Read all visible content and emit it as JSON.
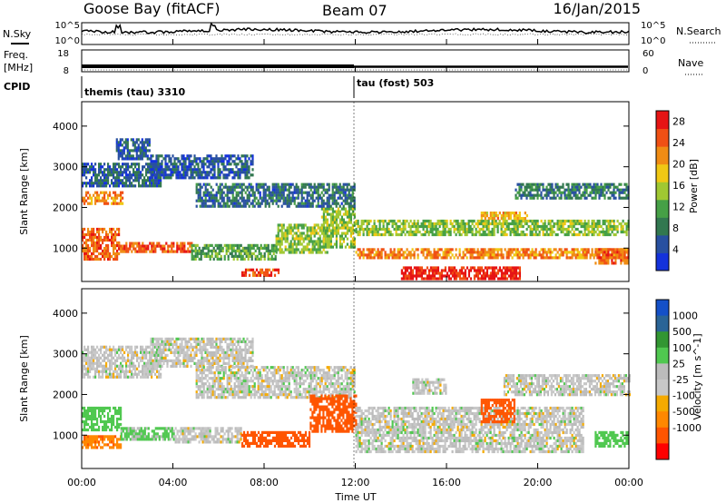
{
  "header": {
    "station": "Goose Bay (fitACF)",
    "beam": "Beam 07",
    "date": "16/Jan/2015"
  },
  "noise_panel": {
    "left_label": "N.Sky",
    "right_label": "N.Search",
    "tick_top": "10^5",
    "tick_bottom": "10^0"
  },
  "freq_panel": {
    "left_label_line1": "Freq.",
    "left_label_line2": "[MHz]",
    "right_label": "Nave",
    "left_ticks": [
      "18",
      "8"
    ],
    "right_ticks": [
      "60",
      "0"
    ]
  },
  "cpid": {
    "label": "CPID",
    "segments": [
      {
        "name": "themis (tau) 3310",
        "start_hour": 0,
        "end_hour": 12
      },
      {
        "name": "tau (fost) 503",
        "start_hour": 12,
        "end_hour": 24
      }
    ]
  },
  "colors": {
    "power": [
      "#1432dc",
      "#2850a0",
      "#327850",
      "#46a046",
      "#a0c832",
      "#f0c814",
      "#f08c14",
      "#f05014",
      "#e61414"
    ],
    "velocity": [
      "#ff0000",
      "#ff5500",
      "#ff8800",
      "#f5aa00",
      "#c8c8c8",
      "#bcbcbc",
      "#50c850",
      "#329632",
      "#2a6496",
      "#1450c8"
    ]
  },
  "chart_data": [
    {
      "type": "heatmap",
      "title": "",
      "xlabel": "Time UT",
      "ylabel": "Slant Range [km]",
      "xlim": [
        0,
        24
      ],
      "ylim": [
        180,
        4600
      ],
      "x_ticks": [
        "00:00",
        "04:00",
        "08:00",
        "12:00",
        "16:00",
        "20:00",
        "00:00"
      ],
      "y_ticks": [
        "1000",
        "2000",
        "3000",
        "4000"
      ],
      "colorbar": {
        "label": "Power [dB]",
        "range": [
          0,
          30
        ],
        "ticks": [
          "4",
          "8",
          "12",
          "16",
          "20",
          "24",
          "28"
        ]
      },
      "regions": [
        {
          "t": [
            0,
            1.6
          ],
          "r": [
            700,
            1500
          ],
          "value": 24
        },
        {
          "t": [
            1.6,
            4.8
          ],
          "r": [
            900,
            1150
          ],
          "value": 24
        },
        {
          "t": [
            4.8,
            8.5
          ],
          "r": [
            700,
            1100
          ],
          "value": 12
        },
        {
          "t": [
            7.0,
            8.6
          ],
          "r": [
            350,
            500
          ],
          "value": 26
        },
        {
          "t": [
            8.5,
            10.8
          ],
          "r": [
            900,
            1600
          ],
          "value": 14
        },
        {
          "t": [
            10.5,
            12
          ],
          "r": [
            1000,
            2000
          ],
          "value": 14
        },
        {
          "t": [
            12,
            24
          ],
          "r": [
            750,
            1000
          ],
          "value": 22
        },
        {
          "t": [
            12,
            24
          ],
          "r": [
            1300,
            1700
          ],
          "value": 14
        },
        {
          "t": [
            14.0,
            19.2
          ],
          "r": [
            280,
            550
          ],
          "value": 28
        },
        {
          "t": [
            22.5,
            24
          ],
          "r": [
            600,
            1000
          ],
          "value": 24
        },
        {
          "t": [
            0,
            1.8
          ],
          "r": [
            2100,
            2400
          ],
          "value": 22
        },
        {
          "t": [
            0,
            3.5
          ],
          "r": [
            2500,
            3100
          ],
          "value": 6
        },
        {
          "t": [
            1.5,
            3.0
          ],
          "r": [
            3200,
            3700
          ],
          "value": 6
        },
        {
          "t": [
            3.0,
            7.5
          ],
          "r": [
            2700,
            3300
          ],
          "value": 5
        },
        {
          "t": [
            5.0,
            12
          ],
          "r": [
            2000,
            2600
          ],
          "value": 7
        },
        {
          "t": [
            17.5,
            19.5
          ],
          "r": [
            1700,
            1900
          ],
          "value": 20
        },
        {
          "t": [
            19.0,
            24
          ],
          "r": [
            2200,
            2600
          ],
          "value": 8
        }
      ]
    },
    {
      "type": "heatmap",
      "title": "",
      "xlabel": "Time UT",
      "ylabel": "Slant Range [km]",
      "xlim": [
        0,
        24
      ],
      "ylim": [
        180,
        4600
      ],
      "x_ticks": [
        "00:00",
        "04:00",
        "08:00",
        "12:00",
        "16:00",
        "20:00",
        "00:00"
      ],
      "y_ticks": [
        "1000",
        "2000",
        "3000",
        "4000"
      ],
      "colorbar": {
        "label": "Velocity [m s^-1]",
        "ticks": [
          "1000",
          "500",
          "100",
          "25",
          "-25",
          "-100",
          "-500",
          "-1000"
        ]
      },
      "regions": [
        {
          "t": [
            0,
            3.5
          ],
          "r": [
            2400,
            3200
          ],
          "value": 0
        },
        {
          "t": [
            3.0,
            7.5
          ],
          "r": [
            2700,
            3400
          ],
          "value": 0
        },
        {
          "t": [
            5.0,
            12
          ],
          "r": [
            1900,
            2700
          ],
          "value": 0
        },
        {
          "t": [
            0,
            1.7
          ],
          "r": [
            1100,
            1700
          ],
          "value": 60
        },
        {
          "t": [
            0,
            1.7
          ],
          "r": [
            700,
            1000
          ],
          "value": -80
        },
        {
          "t": [
            1.7,
            4.0
          ],
          "r": [
            900,
            1200
          ],
          "value": 40
        },
        {
          "t": [
            4.0,
            7.0
          ],
          "r": [
            800,
            1200
          ],
          "value": 0
        },
        {
          "t": [
            7.0,
            10.0
          ],
          "r": [
            700,
            1100
          ],
          "value": -300
        },
        {
          "t": [
            10.0,
            12.0
          ],
          "r": [
            1100,
            2000
          ],
          "value": -300
        },
        {
          "t": [
            12,
            22
          ],
          "r": [
            600,
            1700
          ],
          "value": 0
        },
        {
          "t": [
            17.5,
            19.0
          ],
          "r": [
            1300,
            1900
          ],
          "value": -200
        },
        {
          "t": [
            18.5,
            24
          ],
          "r": [
            2000,
            2500
          ],
          "value": 0
        },
        {
          "t": [
            22.5,
            24
          ],
          "r": [
            700,
            1100
          ],
          "value": 60
        },
        {
          "t": [
            14.5,
            16.0
          ],
          "r": [
            2000,
            2400
          ],
          "value": 0
        }
      ]
    }
  ]
}
